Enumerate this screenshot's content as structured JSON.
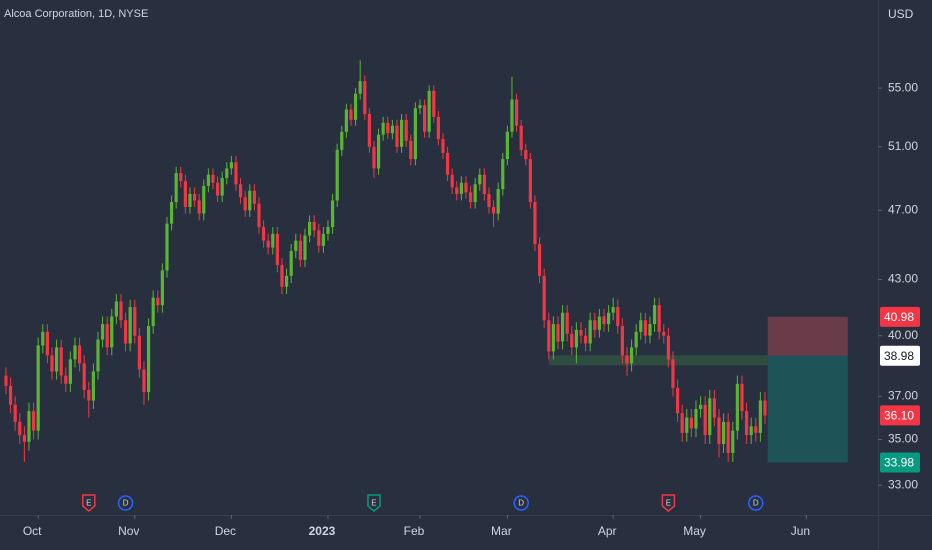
{
  "chart_data": {
    "type": "candlestick",
    "title": "Alcoa Corporation, 1D, NYSE",
    "currency": "USD",
    "log_scale": true,
    "up_color": "#5bb534",
    "down_color": "#f23645",
    "xlim": [
      -1.3,
      189.57
    ],
    "ylim": [
      31.76,
      61.6
    ],
    "yticks": [
      {
        "value": 55,
        "label": "55.00"
      },
      {
        "value": 51,
        "label": "51.00"
      },
      {
        "value": 47,
        "label": "47.00"
      },
      {
        "value": 43,
        "label": "43.00"
      },
      {
        "value": 40,
        "label": "40.00"
      },
      {
        "value": 37,
        "label": "37.00"
      },
      {
        "value": 35,
        "label": "35.00"
      },
      {
        "value": 33,
        "label": "33.00"
      }
    ],
    "xticks": [
      {
        "value": 7,
        "label": "Oct"
      },
      {
        "value": 28,
        "label": "Nov"
      },
      {
        "value": 49,
        "label": "Dec"
      },
      {
        "value": 70,
        "label": "2023",
        "bold": true
      },
      {
        "value": 90,
        "label": "Feb"
      },
      {
        "value": 109,
        "label": "Mar"
      },
      {
        "value": 132,
        "label": "Apr"
      },
      {
        "value": 151,
        "label": "May"
      },
      {
        "value": 174,
        "label": "Jun"
      }
    ],
    "candles": [
      [
        38.0,
        38.4,
        37.1,
        37.5
      ],
      [
        37.5,
        37.9,
        36.2,
        36.6
      ],
      [
        36.6,
        37.0,
        35.4,
        35.8
      ],
      [
        35.8,
        36.2,
        34.8,
        35.2
      ],
      [
        35.2,
        35.6,
        34.0,
        34.9
      ],
      [
        34.9,
        36.7,
        34.5,
        36.3
      ],
      [
        36.3,
        36.7,
        35.0,
        35.4
      ],
      [
        35.4,
        39.9,
        35.0,
        39.5
      ],
      [
        39.5,
        40.6,
        39.1,
        40.2
      ],
      [
        40.2,
        40.6,
        38.6,
        39.0
      ],
      [
        39.0,
        39.4,
        37.8,
        38.2
      ],
      [
        38.2,
        39.8,
        37.8,
        39.4
      ],
      [
        39.4,
        39.8,
        37.6,
        38.0
      ],
      [
        38.0,
        38.4,
        37.2,
        37.6
      ],
      [
        37.6,
        39.2,
        37.2,
        38.8
      ],
      [
        38.8,
        39.9,
        38.4,
        39.5
      ],
      [
        39.5,
        39.9,
        38.2,
        38.6
      ],
      [
        38.6,
        39.0,
        36.9,
        37.3
      ],
      [
        37.3,
        37.7,
        36.0,
        36.8
      ],
      [
        36.8,
        38.6,
        36.4,
        38.2
      ],
      [
        38.2,
        40.2,
        37.8,
        39.8
      ],
      [
        39.8,
        41.0,
        39.4,
        40.6
      ],
      [
        40.6,
        41.0,
        39.0,
        39.4
      ],
      [
        39.4,
        41.4,
        39.0,
        41.0
      ],
      [
        41.0,
        42.2,
        40.6,
        41.8
      ],
      [
        41.8,
        42.2,
        40.4,
        40.8
      ],
      [
        40.8,
        41.2,
        39.2,
        39.6
      ],
      [
        39.6,
        41.9,
        39.2,
        41.5
      ],
      [
        41.5,
        41.9,
        39.6,
        40.0
      ],
      [
        40.0,
        40.4,
        37.9,
        38.3
      ],
      [
        38.3,
        38.7,
        36.6,
        37.2
      ],
      [
        37.2,
        40.9,
        36.8,
        40.5
      ],
      [
        40.5,
        42.4,
        40.1,
        42.0
      ],
      [
        42.0,
        42.4,
        41.2,
        41.6
      ],
      [
        41.6,
        43.9,
        41.2,
        43.5
      ],
      [
        43.5,
        46.6,
        43.1,
        46.2
      ],
      [
        46.2,
        47.9,
        45.8,
        47.5
      ],
      [
        47.5,
        49.7,
        47.1,
        49.3
      ],
      [
        49.3,
        49.7,
        48.4,
        48.8
      ],
      [
        48.8,
        49.2,
        46.8,
        47.2
      ],
      [
        47.2,
        48.4,
        46.8,
        48.0
      ],
      [
        48.0,
        48.4,
        47.2,
        47.6
      ],
      [
        47.6,
        48.0,
        46.4,
        46.8
      ],
      [
        46.8,
        48.9,
        46.4,
        48.5
      ],
      [
        48.5,
        49.6,
        48.1,
        49.2
      ],
      [
        49.2,
        49.6,
        48.3,
        48.7
      ],
      [
        48.7,
        49.1,
        47.5,
        47.9
      ],
      [
        47.9,
        49.4,
        47.5,
        49.0
      ],
      [
        49.0,
        50.0,
        48.6,
        49.6
      ],
      [
        49.6,
        50.4,
        49.2,
        50.0
      ],
      [
        50.0,
        50.4,
        48.2,
        48.6
      ],
      [
        48.6,
        49.0,
        47.4,
        47.8
      ],
      [
        47.8,
        48.2,
        46.6,
        47.0
      ],
      [
        47.0,
        48.6,
        46.6,
        48.2
      ],
      [
        48.2,
        48.6,
        47.0,
        47.4
      ],
      [
        47.4,
        47.8,
        45.6,
        46.0
      ],
      [
        46.0,
        46.4,
        44.8,
        45.2
      ],
      [
        45.2,
        45.6,
        44.4,
        44.8
      ],
      [
        44.8,
        46.0,
        44.4,
        45.6
      ],
      [
        45.6,
        46.0,
        43.4,
        43.8
      ],
      [
        43.8,
        44.2,
        42.2,
        42.6
      ],
      [
        42.6,
        43.6,
        42.2,
        43.2
      ],
      [
        43.2,
        45.0,
        42.8,
        44.6
      ],
      [
        44.6,
        45.6,
        44.2,
        45.2
      ],
      [
        45.2,
        45.6,
        43.7,
        44.1
      ],
      [
        44.1,
        45.9,
        43.7,
        45.5
      ],
      [
        45.5,
        46.7,
        45.1,
        46.3
      ],
      [
        46.3,
        46.7,
        45.4,
        45.8
      ],
      [
        45.8,
        46.2,
        44.5,
        44.9
      ],
      [
        44.9,
        46.0,
        44.5,
        45.6
      ],
      [
        45.6,
        46.4,
        45.2,
        46.0
      ],
      [
        46.0,
        48.0,
        45.6,
        47.6
      ],
      [
        47.6,
        51.2,
        47.2,
        50.8
      ],
      [
        50.8,
        52.4,
        50.4,
        52.0
      ],
      [
        52.0,
        53.9,
        51.6,
        53.5
      ],
      [
        53.5,
        53.9,
        52.4,
        52.8
      ],
      [
        52.8,
        55.0,
        52.4,
        54.6
      ],
      [
        54.6,
        57.0,
        54.2,
        55.5
      ],
      [
        55.5,
        55.9,
        52.8,
        53.2
      ],
      [
        53.2,
        53.6,
        50.6,
        51.0
      ],
      [
        51.0,
        51.4,
        49.0,
        49.6
      ],
      [
        49.6,
        52.2,
        49.2,
        51.8
      ],
      [
        51.8,
        53.0,
        51.4,
        52.6
      ],
      [
        52.6,
        53.0,
        51.5,
        51.9
      ],
      [
        51.9,
        52.8,
        51.5,
        52.4
      ],
      [
        52.4,
        52.8,
        50.6,
        51.0
      ],
      [
        51.0,
        53.2,
        50.6,
        52.8
      ],
      [
        52.8,
        53.2,
        51.0,
        51.4
      ],
      [
        51.4,
        51.8,
        49.8,
        50.2
      ],
      [
        50.2,
        54.0,
        49.8,
        53.6
      ],
      [
        53.6,
        54.2,
        53.2,
        53.8
      ],
      [
        53.8,
        54.2,
        51.6,
        52.0
      ],
      [
        52.0,
        55.2,
        51.6,
        54.8
      ],
      [
        54.8,
        55.2,
        52.6,
        53.0
      ],
      [
        53.0,
        53.4,
        51.1,
        51.5
      ],
      [
        51.5,
        51.9,
        50.2,
        50.6
      ],
      [
        50.6,
        51.0,
        48.8,
        49.2
      ],
      [
        49.2,
        49.6,
        48.0,
        48.4
      ],
      [
        48.4,
        48.8,
        47.6,
        48.0
      ],
      [
        48.0,
        49.1,
        47.6,
        48.7
      ],
      [
        48.7,
        49.1,
        47.7,
        48.1
      ],
      [
        48.1,
        48.5,
        47.1,
        47.5
      ],
      [
        47.5,
        49.0,
        47.1,
        48.6
      ],
      [
        48.6,
        49.6,
        48.2,
        49.2
      ],
      [
        49.2,
        49.6,
        47.6,
        48.0
      ],
      [
        48.0,
        48.4,
        46.8,
        47.2
      ],
      [
        47.2,
        47.6,
        46.0,
        46.8
      ],
      [
        46.8,
        48.7,
        46.4,
        48.3
      ],
      [
        48.3,
        50.6,
        47.9,
        50.2
      ],
      [
        50.2,
        52.4,
        49.8,
        52.0
      ],
      [
        52.0,
        55.8,
        51.6,
        54.2
      ],
      [
        54.2,
        54.6,
        52.0,
        52.4
      ],
      [
        52.4,
        52.8,
        50.4,
        50.8
      ],
      [
        50.8,
        51.2,
        49.8,
        50.2
      ],
      [
        50.2,
        50.6,
        47.1,
        47.5
      ],
      [
        47.5,
        47.9,
        44.6,
        45.0
      ],
      [
        45.0,
        45.4,
        42.8,
        43.2
      ],
      [
        43.2,
        43.6,
        40.4,
        40.8
      ],
      [
        40.8,
        41.2,
        38.8,
        39.2
      ],
      [
        39.2,
        41.0,
        38.8,
        40.6
      ],
      [
        40.6,
        41.0,
        39.3,
        39.7
      ],
      [
        39.7,
        41.6,
        39.3,
        41.2
      ],
      [
        41.2,
        41.6,
        39.7,
        40.1
      ],
      [
        40.1,
        40.5,
        39.0,
        39.4
      ],
      [
        39.4,
        40.7,
        38.6,
        40.3
      ],
      [
        40.3,
        40.7,
        39.6,
        40.0
      ],
      [
        40.0,
        40.4,
        39.2,
        39.6
      ],
      [
        39.6,
        41.2,
        39.2,
        40.8
      ],
      [
        40.8,
        41.2,
        39.9,
        40.3
      ],
      [
        40.3,
        41.4,
        39.9,
        41.0
      ],
      [
        41.0,
        41.4,
        40.2,
        40.6
      ],
      [
        40.6,
        41.6,
        40.2,
        41.2
      ],
      [
        41.2,
        42.0,
        40.8,
        41.5
      ],
      [
        41.5,
        41.9,
        40.1,
        40.5
      ],
      [
        40.5,
        40.9,
        38.6,
        39.0
      ],
      [
        39.0,
        39.4,
        38.0,
        38.6
      ],
      [
        38.6,
        39.8,
        38.2,
        39.4
      ],
      [
        39.4,
        40.6,
        39.0,
        40.2
      ],
      [
        40.2,
        41.2,
        39.8,
        40.8
      ],
      [
        40.8,
        41.2,
        39.6,
        40.0
      ],
      [
        40.0,
        41.0,
        39.6,
        40.6
      ],
      [
        40.6,
        42.0,
        40.2,
        41.6
      ],
      [
        41.6,
        42.0,
        39.8,
        40.2
      ],
      [
        40.2,
        40.6,
        39.6,
        40.0
      ],
      [
        40.0,
        40.4,
        38.4,
        38.8
      ],
      [
        38.8,
        39.2,
        37.0,
        37.4
      ],
      [
        37.4,
        37.8,
        35.8,
        36.2
      ],
      [
        36.2,
        36.6,
        34.9,
        35.3
      ],
      [
        35.3,
        36.4,
        34.9,
        36.0
      ],
      [
        36.0,
        36.4,
        35.1,
        35.5
      ],
      [
        35.5,
        36.8,
        35.1,
        36.4
      ],
      [
        36.4,
        37.0,
        36.0,
        36.6
      ],
      [
        36.6,
        37.0,
        34.8,
        35.2
      ],
      [
        35.2,
        37.3,
        34.8,
        36.9
      ],
      [
        36.9,
        37.3,
        35.6,
        36.0
      ],
      [
        36.0,
        36.4,
        34.2,
        34.8
      ],
      [
        34.8,
        36.2,
        34.4,
        35.8
      ],
      [
        35.8,
        36.2,
        34.0,
        34.4
      ],
      [
        34.4,
        35.8,
        34.0,
        35.4
      ],
      [
        35.4,
        38.0,
        35.0,
        37.6
      ],
      [
        37.6,
        38.0,
        35.9,
        36.3
      ],
      [
        36.3,
        36.7,
        34.8,
        35.2
      ],
      [
        35.2,
        36.0,
        34.8,
        35.6
      ],
      [
        35.6,
        36.0,
        34.9,
        35.3
      ],
      [
        35.3,
        37.2,
        34.9,
        36.8
      ],
      [
        36.8,
        37.2,
        35.7,
        36.1
      ]
    ],
    "last_price": {
      "value": 36.1,
      "label": "36.10"
    },
    "zone": {
      "low": 38.5,
      "high": 39.0,
      "start": 118,
      "end": 165.6,
      "color": "#2f5140"
    },
    "position": {
      "stop": 40.98,
      "entry": 38.98,
      "target": 33.98,
      "start": 165.6,
      "end": 183,
      "stop_color": "#6a3c4a",
      "target_color": "#1e5458"
    },
    "events": [
      {
        "index": 18,
        "label": "E",
        "color": "#f23645",
        "shape": "badge"
      },
      {
        "index": 26,
        "label": "D",
        "color": "#2962ff",
        "shape": "circle"
      },
      {
        "index": 80,
        "label": "E",
        "color": "#089981",
        "shape": "badge"
      },
      {
        "index": 112,
        "label": "D",
        "color": "#2962ff",
        "shape": "circle"
      },
      {
        "index": 144,
        "label": "E",
        "color": "#f23645",
        "shape": "badge"
      },
      {
        "index": 163,
        "label": "D",
        "color": "#2962ff",
        "shape": "circle"
      }
    ]
  }
}
